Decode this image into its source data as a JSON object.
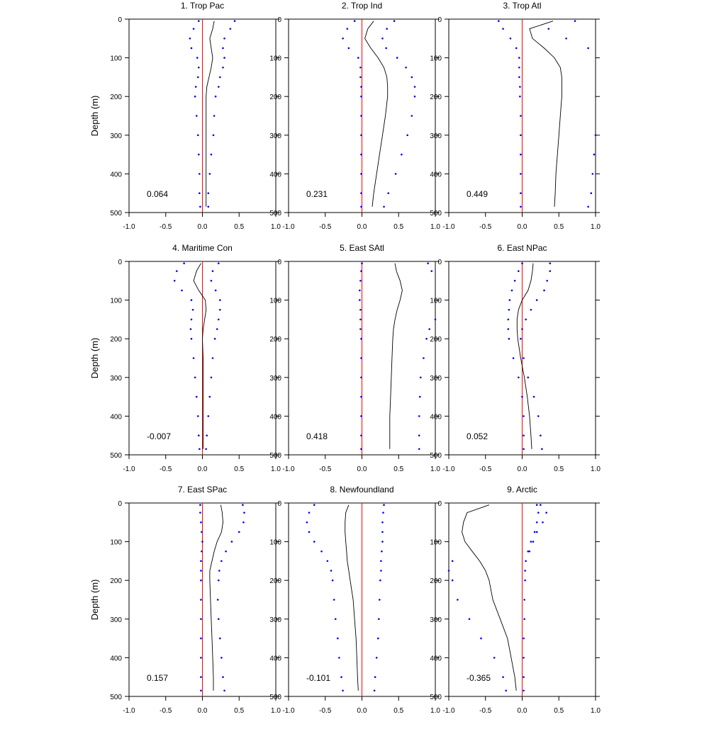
{
  "figure": {
    "ylabel": "Depth (m)",
    "colors": {
      "mean": "#000000",
      "spread": "#0000ff",
      "zero_line": "#ff0000"
    }
  },
  "chart_data": [
    {
      "type": "line",
      "title": "1. Trop Pac",
      "annotation": "0.064",
      "xlim": [
        -1.0,
        1.0
      ],
      "ylim": [
        500,
        0
      ],
      "xticks": [
        "-1.0",
        "-0.5",
        "0.0",
        "0.5",
        "1.0"
      ],
      "yticks": [
        "0",
        "100",
        "200",
        "300",
        "400",
        "500"
      ],
      "ylabel": "Depth (m)",
      "depth": [
        5,
        25,
        50,
        75,
        100,
        125,
        150,
        175,
        200,
        250,
        300,
        350,
        400,
        450,
        485
      ],
      "series": [
        {
          "values": [
            0.16,
            0.14,
            0.1,
            0.12,
            0.14,
            0.12,
            0.09,
            0.06,
            0.05,
            0.05,
            0.05,
            0.05,
            0.05,
            0.05,
            0.05
          ]
        },
        {
          "values": [
            -0.05,
            -0.12,
            -0.17,
            -0.15,
            -0.07,
            -0.05,
            -0.06,
            -0.09,
            -0.1,
            -0.08,
            -0.06,
            -0.05,
            -0.04,
            -0.04,
            -0.03
          ]
        },
        {
          "values": [
            0.44,
            0.38,
            0.3,
            0.28,
            0.3,
            0.28,
            0.24,
            0.22,
            0.18,
            0.16,
            0.15,
            0.12,
            0.1,
            0.08,
            0.08
          ]
        }
      ]
    },
    {
      "type": "line",
      "title": "2. Trop Ind",
      "annotation": "0.231",
      "xlim": [
        -1.0,
        1.0
      ],
      "ylim": [
        500,
        0
      ],
      "xticks": [
        "-1.0",
        "-0.5",
        "0.0",
        "0.5",
        "1.0"
      ],
      "yticks": [
        "0",
        "100",
        "200",
        "300",
        "400",
        "500"
      ],
      "ylabel": "",
      "depth": [
        5,
        25,
        50,
        75,
        100,
        125,
        150,
        175,
        200,
        250,
        300,
        350,
        400,
        450,
        485
      ],
      "series": [
        {
          "values": [
            0.16,
            0.08,
            0.04,
            0.12,
            0.22,
            0.3,
            0.34,
            0.35,
            0.35,
            0.32,
            0.28,
            0.24,
            0.2,
            0.16,
            0.14
          ]
        },
        {
          "values": [
            -0.1,
            -0.2,
            -0.26,
            -0.18,
            -0.05,
            -0.02,
            -0.02,
            -0.01,
            -0.01,
            -0.01,
            -0.01,
            -0.01,
            -0.01,
            -0.01,
            -0.01
          ]
        },
        {
          "values": [
            0.44,
            0.34,
            0.28,
            0.33,
            0.48,
            0.6,
            0.68,
            0.72,
            0.72,
            0.68,
            0.62,
            0.54,
            0.46,
            0.36,
            0.3
          ]
        }
      ]
    },
    {
      "type": "line",
      "title": "3. Trop Atl",
      "annotation": "0.449",
      "xlim": [
        -1.0,
        1.0
      ],
      "ylim": [
        500,
        0
      ],
      "xticks": [
        "-1.0",
        "-0.5",
        "0.0",
        "0.5",
        "1.0"
      ],
      "yticks": [
        "0",
        "100",
        "200",
        "300",
        "400",
        "500"
      ],
      "ylabel": "",
      "depth": [
        5,
        25,
        50,
        75,
        100,
        125,
        150,
        175,
        200,
        250,
        300,
        350,
        400,
        450,
        485
      ],
      "series": [
        {
          "values": [
            0.42,
            0.1,
            0.14,
            0.3,
            0.44,
            0.52,
            0.54,
            0.54,
            0.54,
            0.52,
            0.5,
            0.48,
            0.46,
            0.45,
            0.44
          ]
        },
        {
          "values": [
            -0.32,
            -0.26,
            -0.16,
            -0.08,
            -0.04,
            -0.04,
            -0.04,
            -0.03,
            -0.03,
            -0.02,
            -0.02,
            -0.02,
            -0.02,
            -0.02,
            -0.02
          ]
        },
        {
          "values": [
            0.72,
            0.36,
            0.6,
            0.9,
            1.05,
            1.05,
            1.05,
            1.05,
            1.04,
            1.02,
            1.0,
            0.98,
            0.96,
            0.94,
            0.9
          ]
        }
      ]
    },
    {
      "type": "line",
      "title": "4. Maritime Con",
      "annotation": "-0.007",
      "xlim": [
        -1.0,
        1.0
      ],
      "ylim": [
        500,
        0
      ],
      "xticks": [
        "-1.0",
        "-0.5",
        "0.0",
        "0.5",
        "1.0"
      ],
      "yticks": [
        "0",
        "100",
        "200",
        "300",
        "400",
        "500"
      ],
      "ylabel": "Depth (m)",
      "depth": [
        5,
        25,
        50,
        75,
        100,
        125,
        150,
        175,
        200,
        250,
        300,
        350,
        400,
        450,
        485
      ],
      "series": [
        {
          "values": [
            -0.02,
            -0.08,
            -0.12,
            -0.05,
            0.04,
            0.05,
            0.03,
            0.01,
            0.0,
            0.01,
            0.01,
            0.01,
            0.01,
            0.01,
            0.01
          ]
        },
        {
          "values": [
            -0.25,
            -0.35,
            -0.38,
            -0.28,
            -0.15,
            -0.13,
            -0.15,
            -0.16,
            -0.15,
            -0.12,
            -0.1,
            -0.08,
            -0.06,
            -0.05,
            -0.04
          ]
        },
        {
          "values": [
            0.22,
            0.14,
            0.12,
            0.18,
            0.24,
            0.24,
            0.22,
            0.2,
            0.17,
            0.14,
            0.12,
            0.1,
            0.08,
            0.06,
            0.05
          ]
        }
      ]
    },
    {
      "type": "line",
      "title": "5. East SAtl",
      "annotation": "0.418",
      "xlim": [
        -1.0,
        1.0
      ],
      "ylim": [
        500,
        0
      ],
      "xticks": [
        "-1.0",
        "-0.5",
        "0.0",
        "0.5",
        "1.0"
      ],
      "yticks": [
        "0",
        "100",
        "200",
        "300",
        "400",
        "500"
      ],
      "ylabel": "",
      "depth": [
        5,
        25,
        50,
        75,
        100,
        125,
        150,
        175,
        200,
        250,
        300,
        350,
        400,
        450,
        485
      ],
      "series": [
        {
          "values": [
            0.45,
            0.47,
            0.52,
            0.55,
            0.52,
            0.48,
            0.45,
            0.43,
            0.42,
            0.41,
            0.4,
            0.39,
            0.38,
            0.38,
            0.38
          ]
        },
        {
          "values": [
            0.0,
            -0.01,
            -0.02,
            -0.03,
            -0.03,
            -0.02,
            -0.02,
            -0.02,
            -0.01,
            -0.01,
            -0.01,
            -0.01,
            -0.01,
            -0.01,
            -0.01
          ]
        },
        {
          "values": [
            0.9,
            0.95,
            1.05,
            1.1,
            1.1,
            1.05,
            1.0,
            0.92,
            0.88,
            0.84,
            0.8,
            0.79,
            0.78,
            0.78,
            0.78
          ]
        }
      ]
    },
    {
      "type": "line",
      "title": "6. East NPac",
      "annotation": "0.052",
      "xlim": [
        -1.0,
        1.0
      ],
      "ylim": [
        500,
        0
      ],
      "xticks": [
        "-1.0",
        "-0.5",
        "0.0",
        "0.5",
        "1.0"
      ],
      "yticks": [
        "0",
        "100",
        "200",
        "300",
        "400",
        "500"
      ],
      "ylabel": "",
      "depth": [
        5,
        25,
        50,
        75,
        100,
        125,
        150,
        175,
        200,
        250,
        300,
        350,
        400,
        450,
        485
      ],
      "series": [
        {
          "values": [
            0.15,
            0.14,
            0.12,
            0.08,
            0.0,
            -0.05,
            -0.07,
            -0.07,
            -0.06,
            -0.02,
            0.03,
            0.07,
            0.1,
            0.12,
            0.13
          ]
        },
        {
          "values": [
            0.0,
            -0.05,
            -0.1,
            -0.14,
            -0.17,
            -0.18,
            -0.19,
            -0.19,
            -0.18,
            -0.12,
            -0.05,
            0.0,
            0.02,
            0.02,
            0.02
          ]
        },
        {
          "values": [
            0.38,
            0.38,
            0.34,
            0.3,
            0.2,
            0.12,
            0.05,
            0.0,
            -0.02,
            0.02,
            0.08,
            0.16,
            0.22,
            0.25,
            0.27
          ]
        }
      ]
    },
    {
      "type": "line",
      "title": "7. East SPac",
      "annotation": "0.157",
      "xlim": [
        -1.0,
        1.0
      ],
      "ylim": [
        500,
        0
      ],
      "xticks": [
        "-1.0",
        "-0.5",
        "0.0",
        "0.5",
        "1.0"
      ],
      "yticks": [
        "0",
        "100",
        "200",
        "300",
        "400",
        "500"
      ],
      "ylabel": "Depth (m)",
      "depth": [
        5,
        25,
        50,
        75,
        100,
        125,
        150,
        175,
        200,
        250,
        300,
        350,
        400,
        450,
        485
      ],
      "series": [
        {
          "values": [
            0.25,
            0.27,
            0.28,
            0.26,
            0.2,
            0.16,
            0.13,
            0.1,
            0.1,
            0.11,
            0.12,
            0.13,
            0.14,
            0.15,
            0.15
          ]
        },
        {
          "values": [
            -0.03,
            -0.03,
            -0.02,
            -0.01,
            0.0,
            -0.01,
            -0.02,
            -0.02,
            -0.02,
            -0.02,
            -0.02,
            -0.02,
            -0.02,
            -0.02,
            -0.02
          ]
        },
        {
          "values": [
            0.55,
            0.57,
            0.56,
            0.5,
            0.4,
            0.32,
            0.26,
            0.23,
            0.22,
            0.21,
            0.22,
            0.24,
            0.26,
            0.28,
            0.3
          ]
        }
      ]
    },
    {
      "type": "line",
      "title": "8. Newfoundland",
      "annotation": "-0.101",
      "xlim": [
        -1.0,
        1.0
      ],
      "ylim": [
        500,
        0
      ],
      "xticks": [
        "-1.0",
        "-0.5",
        "0.0",
        "0.5",
        "1.0"
      ],
      "yticks": [
        "0",
        "100",
        "200",
        "300",
        "400",
        "500"
      ],
      "ylabel": "",
      "depth": [
        5,
        25,
        50,
        75,
        100,
        125,
        150,
        175,
        200,
        250,
        300,
        350,
        400,
        450,
        485
      ],
      "series": [
        {
          "values": [
            -0.18,
            -0.22,
            -0.23,
            -0.23,
            -0.22,
            -0.21,
            -0.2,
            -0.18,
            -0.16,
            -0.12,
            -0.1,
            -0.08,
            -0.07,
            -0.06,
            -0.05
          ]
        },
        {
          "values": [
            -0.65,
            -0.72,
            -0.75,
            -0.72,
            -0.65,
            -0.55,
            -0.47,
            -0.42,
            -0.4,
            -0.38,
            -0.36,
            -0.33,
            -0.31,
            -0.28,
            -0.26
          ]
        },
        {
          "values": [
            0.3,
            0.29,
            0.28,
            0.28,
            0.28,
            0.27,
            0.26,
            0.26,
            0.25,
            0.24,
            0.23,
            0.22,
            0.2,
            0.18,
            0.17
          ]
        }
      ]
    },
    {
      "type": "line",
      "title": "9. Arctic",
      "annotation": "-0.365",
      "xlim": [
        -1.0,
        1.0
      ],
      "ylim": [
        500,
        0
      ],
      "xticks": [
        "-1.0",
        "-0.5",
        "0.0",
        "0.5",
        "1.0"
      ],
      "yticks": [
        "0",
        "100",
        "200",
        "300",
        "400",
        "500"
      ],
      "ylabel": "",
      "depth": [
        5,
        25,
        50,
        75,
        100,
        125,
        150,
        175,
        200,
        250,
        300,
        350,
        400,
        450,
        485
      ],
      "series": [
        {
          "values": [
            -0.45,
            -0.75,
            -0.8,
            -0.82,
            -0.78,
            -0.68,
            -0.58,
            -0.5,
            -0.45,
            -0.4,
            -0.3,
            -0.2,
            -0.15,
            -0.1,
            -0.08
          ]
        },
        {
          "values": [
            0.2,
            0.22,
            0.2,
            0.17,
            0.12,
            0.08,
            0.05,
            0.04,
            0.04,
            0.03,
            0.03,
            0.02,
            0.02,
            0.02,
            0.02
          ]
        },
        {
          "values": [
            0.25,
            0.33,
            0.28,
            0.2,
            0.15,
            0.1,
            -0.95,
            -1.0,
            -0.95,
            -0.88,
            -0.72,
            -0.56,
            -0.38,
            -0.26,
            -0.22
          ]
        }
      ]
    }
  ]
}
